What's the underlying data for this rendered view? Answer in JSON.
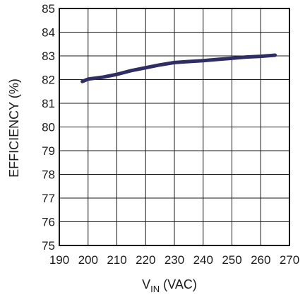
{
  "chart_data": {
    "type": "line",
    "title": "",
    "xlabel_main": "V",
    "xlabel_sub": "IN",
    "xlabel_unit": " (VAC)",
    "ylabel": "EFFICIENCY (%)",
    "xlim": [
      190,
      270
    ],
    "ylim": [
      75,
      85
    ],
    "x_ticks": [
      190,
      200,
      210,
      220,
      230,
      240,
      250,
      260,
      270
    ],
    "y_ticks": [
      75,
      76,
      77,
      78,
      79,
      80,
      81,
      82,
      83,
      84,
      85
    ],
    "grid": true,
    "legend": "none",
    "series_color": "#2e2e64",
    "series": [
      {
        "x": [
          198,
          200,
          205,
          210,
          215,
          220,
          225,
          230,
          235,
          240,
          245,
          250,
          255,
          260,
          265
        ],
        "y": [
          81.92,
          82.02,
          82.1,
          82.22,
          82.38,
          82.5,
          82.62,
          82.72,
          82.76,
          82.8,
          82.85,
          82.9,
          82.95,
          82.98,
          83.03
        ]
      }
    ]
  }
}
